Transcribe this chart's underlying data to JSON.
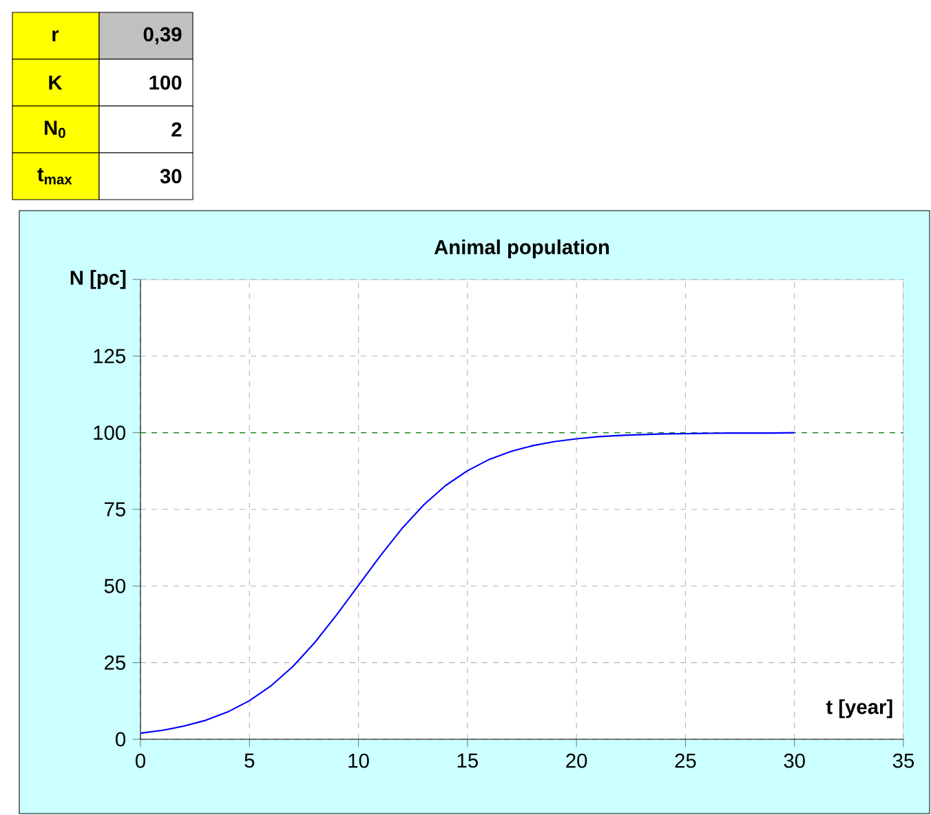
{
  "chart_data": {
    "type": "line",
    "title": "Animal population",
    "xlabel": "t [year]",
    "ylabel": "N [pc]",
    "annotations": [
      "r",
      "0,39",
      "K",
      "100",
      "N$_{0}$",
      "2",
      "t$_{max}$",
      "30"
    ],
    "x": [
      0,
      1,
      2,
      3,
      4,
      5,
      6,
      7,
      8,
      9,
      10,
      11,
      12,
      13,
      14,
      15,
      16,
      17,
      18,
      19,
      20,
      21,
      22,
      23,
      24,
      25,
      26,
      27,
      28,
      29,
      30
    ],
    "series": [
      {
        "color": "#0000ff",
        "values": [
          2.0,
          2.9,
          4.3,
          6.2,
          8.9,
          12.6,
          17.5,
          23.8,
          31.6,
          40.6,
          50.2,
          59.8,
          68.8,
          76.5,
          82.8,
          87.6,
          91.3,
          93.9,
          95.8,
          97.1,
          98.0,
          98.7,
          99.1,
          99.4,
          99.6,
          99.7,
          99.8,
          99.9,
          99.9,
          99.9,
          100.0
        ]
      }
    ],
    "xlim": [
      0,
      35
    ],
    "xticks": [
      0,
      5,
      10,
      15,
      20,
      25,
      30,
      35
    ],
    "ylim": [
      0,
      150
    ],
    "yticks": [
      0,
      25,
      50,
      75,
      100,
      125,
      {
        "value": 150,
        "label": null
      }
    ],
    "grid": true,
    "marker": "none",
    "line_style": "solid",
    "ref_lines": [
      {
        "axis": "y",
        "value": 100,
        "color": "#008000",
        "line_style": "dashed"
      }
    ]
  }
}
